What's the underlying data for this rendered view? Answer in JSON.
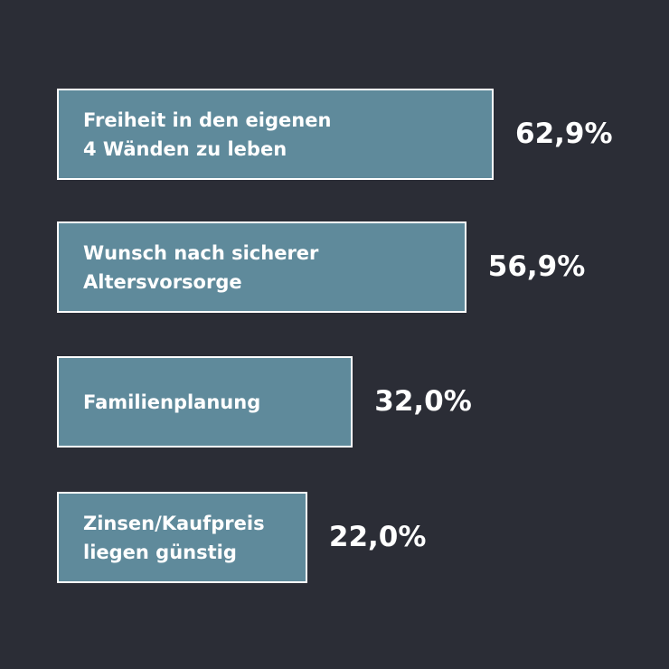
{
  "chart_data": {
    "type": "bar",
    "orientation": "horizontal",
    "categories": [
      "Freiheit in den eigenen\n4 Wänden zu leben",
      "Wunsch nach sicherer\nAltersvorsorge",
      "Familienplanung",
      "Zinsen/Kaufpreis\nliegen günstig"
    ],
    "values": [
      62.9,
      56.9,
      32.0,
      22.0
    ],
    "value_labels": [
      "62,9%",
      "56,9%",
      "32,0%",
      "22,0%"
    ],
    "color": "#5f8a9b"
  }
}
